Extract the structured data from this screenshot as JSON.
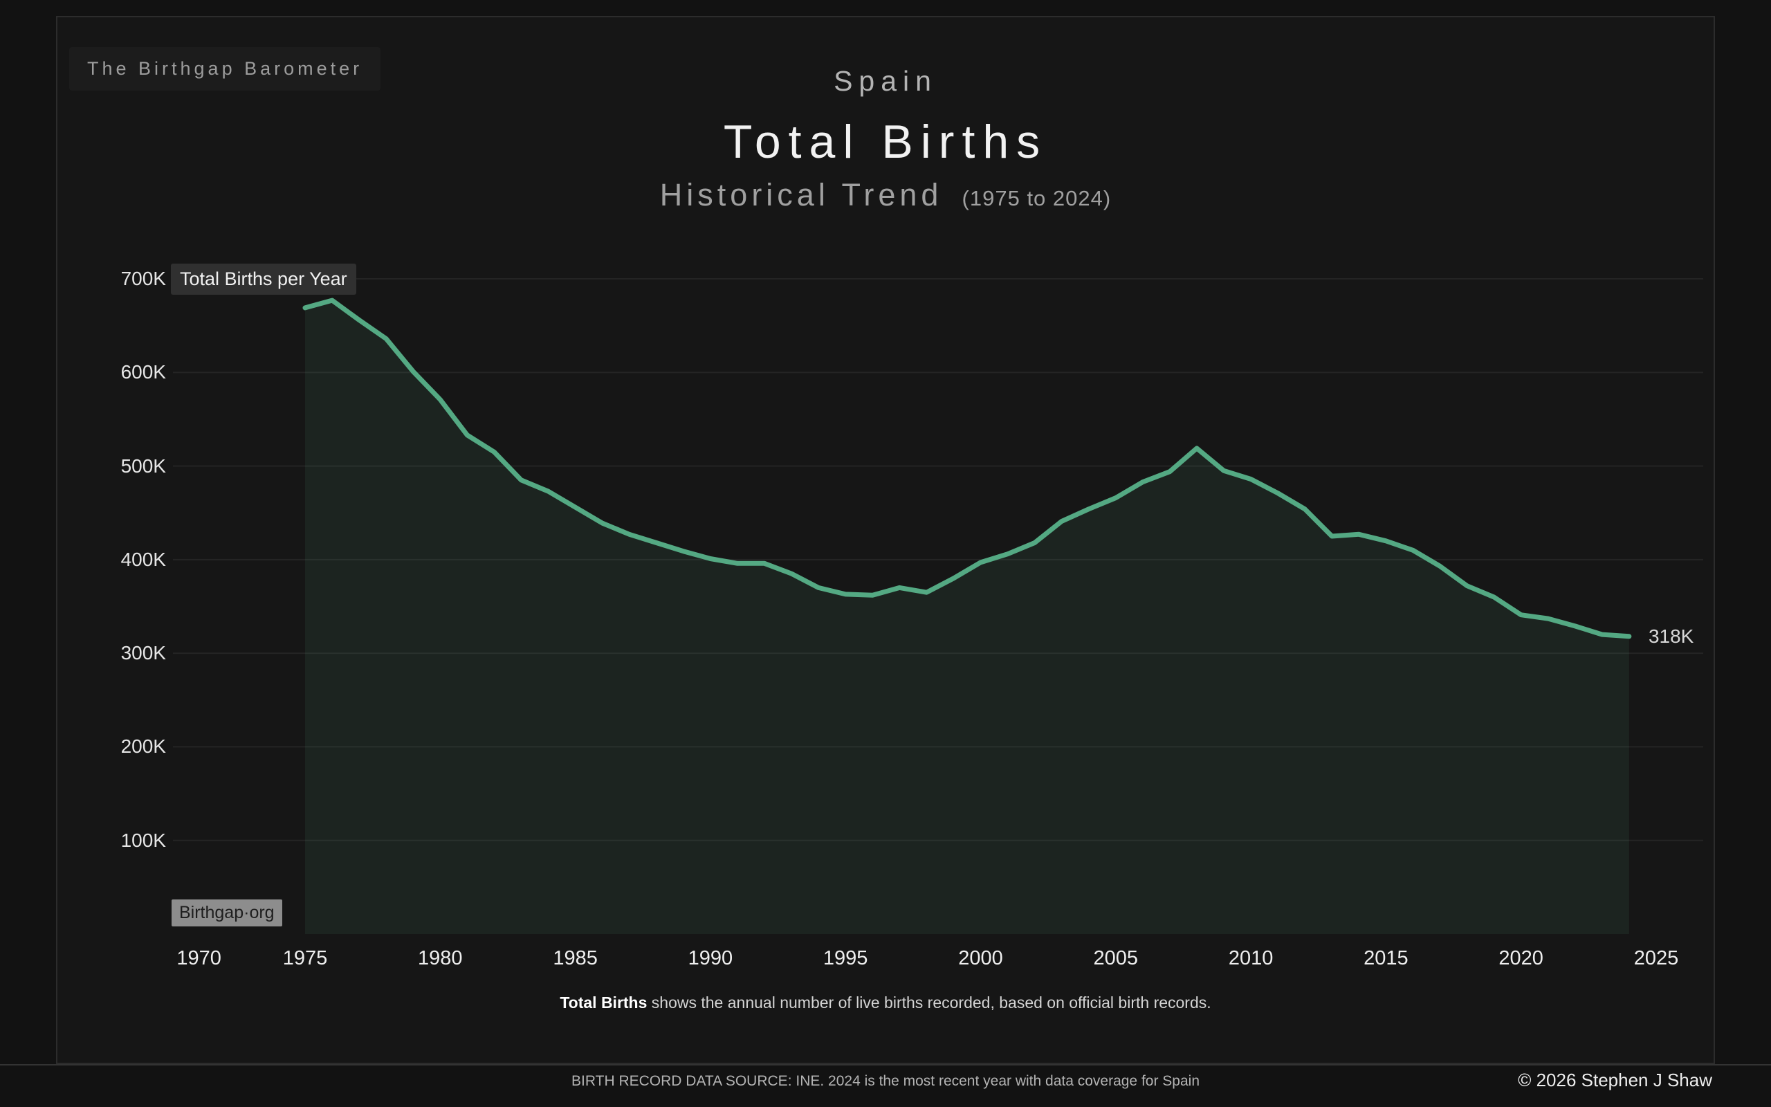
{
  "brand": "The Birthgap Barometer",
  "header": {
    "country": "Spain",
    "title": "Total Births",
    "subtitle": "Historical Trend",
    "subtitle_range": "(1975 to 2024)"
  },
  "chart": {
    "series_badge": "Total Births per Year",
    "watermark": "Birthgap·org",
    "end_label": "318K",
    "caption_bold": "Total Births",
    "caption_rest": " shows the annual number of live births recorded, based on official birth records."
  },
  "footer": {
    "source": "BIRTH RECORD DATA SOURCE: INE. 2024 is the most recent year with data coverage for Spain",
    "copyright": "© 2026 Stephen J Shaw"
  },
  "chart_data": {
    "type": "area",
    "title": "Spain — Total Births, Historical Trend (1975 to 2024)",
    "xlabel": "",
    "ylabel": "Total Births per Year",
    "unit": "thousands of births",
    "grid": "horizontal-only",
    "legend_position": "none",
    "xlim": [
      1970,
      2025
    ],
    "ylim": [
      0,
      700
    ],
    "line_color": "#54a983",
    "fill_color": "rgba(85,170,131,0.10)",
    "x": [
      1975,
      1976,
      1977,
      1978,
      1979,
      1980,
      1981,
      1982,
      1983,
      1984,
      1985,
      1986,
      1987,
      1988,
      1989,
      1990,
      1991,
      1992,
      1993,
      1994,
      1995,
      1996,
      1997,
      1998,
      1999,
      2000,
      2001,
      2002,
      2003,
      2004,
      2005,
      2006,
      2007,
      2008,
      2009,
      2010,
      2011,
      2012,
      2013,
      2014,
      2015,
      2016,
      2017,
      2018,
      2019,
      2020,
      2021,
      2022,
      2023,
      2024
    ],
    "values": [
      669,
      677,
      656,
      636,
      601,
      571,
      533,
      515,
      485,
      473,
      456,
      439,
      427,
      418,
      409,
      401,
      396,
      396,
      385,
      370,
      363,
      362,
      370,
      365,
      380,
      397,
      406,
      418,
      441,
      454,
      466,
      483,
      494,
      519,
      495,
      486,
      471,
      454,
      425,
      427,
      420,
      410,
      393,
      372,
      360,
      341,
      337,
      329,
      320,
      318
    ],
    "x_ticks": [
      1970,
      1975,
      1980,
      1985,
      1990,
      1995,
      2000,
      2005,
      2010,
      2015,
      2020,
      2025
    ],
    "y_tick_values": [
      100,
      200,
      300,
      400,
      500,
      600,
      700
    ],
    "y_tick_labels": [
      "100K",
      "200K",
      "300K",
      "400K",
      "500K",
      "600K",
      "700K"
    ],
    "last_value_label": "318K"
  }
}
